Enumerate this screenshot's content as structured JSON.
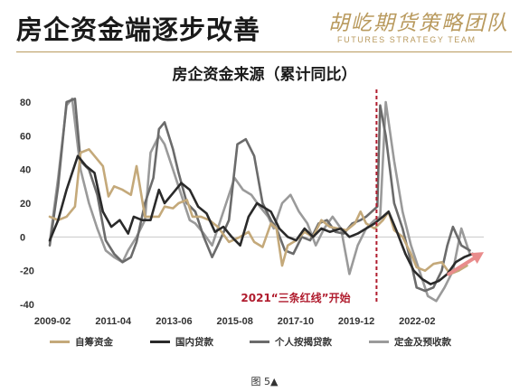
{
  "header": {
    "title": "房企资金端逐步改善",
    "logo_cn": "胡屹期货策略团队",
    "logo_en": "FUTURES STRATEGY TEAM"
  },
  "caption": "图 5▲",
  "chart_data": {
    "type": "line",
    "title": "房企资金来源（累计同比）",
    "xlabel": "",
    "ylabel": "",
    "x_ticks": [
      "2009-02",
      "2011-04",
      "2013-06",
      "2015-08",
      "2017-10",
      "2019-12",
      "2022-02"
    ],
    "y_ticks": [
      "80",
      "60",
      "40",
      "20",
      "0",
      "-20",
      "-40"
    ],
    "ylim": [
      -40,
      80
    ],
    "xlim": [
      2009.0,
      2024.5
    ],
    "grid": false,
    "legend_position": "bottom",
    "annotation": {
      "text": "2021“三条红线”开始",
      "x": 2020.67,
      "color": "#b01c2e"
    },
    "arrow": {
      "from": [
        2023.25,
        -22
      ],
      "to": [
        2024.5,
        -9
      ],
      "color": "#e98c8c"
    },
    "colors": {
      "自筹资金": "#c4a97a",
      "国内贷款": "#2a2a2a",
      "个人按揭贷款": "#6b6b6b",
      "定金及预收款": "#9a9a9a"
    },
    "series": [
      {
        "name": "自筹资金",
        "x": [
          2009.0,
          2009.3,
          2009.6,
          2009.9,
          2010.1,
          2010.4,
          2010.6,
          2010.9,
          2011.1,
          2011.3,
          2011.6,
          2011.9,
          2012.1,
          2012.4,
          2012.6,
          2012.9,
          2013.1,
          2013.4,
          2013.6,
          2013.9,
          2014.1,
          2014.4,
          2014.7,
          2015.0,
          2015.4,
          2015.8,
          2016.1,
          2016.3,
          2016.6,
          2016.9,
          2017.1,
          2017.3,
          2017.5,
          2017.8,
          2018.1,
          2018.4,
          2018.7,
          2019.0,
          2019.3,
          2019.6,
          2019.9,
          2020.1,
          2020.3,
          2020.6,
          2020.9,
          2021.1,
          2021.3,
          2021.6,
          2021.9,
          2022.1,
          2022.4,
          2022.7,
          2023.0,
          2023.3,
          2023.6,
          2023.9
        ],
        "values": [
          12,
          10,
          12,
          18,
          50,
          52,
          48,
          42,
          24,
          30,
          28,
          25,
          42,
          12,
          12,
          12,
          18,
          17,
          20,
          22,
          12,
          12,
          10,
          6,
          -3,
          0,
          3,
          -3,
          -6,
          8,
          5,
          -17,
          -5,
          -2,
          3,
          0,
          10,
          6,
          5,
          4,
          8,
          15,
          8,
          5,
          10,
          15,
          4,
          0,
          -10,
          -18,
          -20,
          -16,
          -15,
          -22,
          -20,
          -17
        ]
      },
      {
        "name": "国内贷款",
        "x": [
          2009.0,
          2009.3,
          2009.6,
          2010.0,
          2010.3,
          2010.6,
          2010.9,
          2011.2,
          2011.5,
          2011.8,
          2012.0,
          2012.3,
          2012.6,
          2012.9,
          2013.1,
          2013.4,
          2013.7,
          2014.0,
          2014.3,
          2014.6,
          2014.9,
          2015.2,
          2015.5,
          2015.8,
          2016.1,
          2016.4,
          2016.7,
          2016.9,
          2017.2,
          2017.5,
          2017.8,
          2018.1,
          2018.4,
          2018.7,
          2019.0,
          2019.4,
          2019.7,
          2020.0,
          2020.3,
          2020.6,
          2020.9,
          2021.1,
          2021.4,
          2021.7,
          2022.0,
          2022.3,
          2022.6,
          2022.9,
          2023.2,
          2023.5,
          2023.8,
          2024.1
        ],
        "values": [
          -2,
          10,
          28,
          48,
          42,
          38,
          15,
          6,
          10,
          2,
          12,
          10,
          10,
          28,
          20,
          26,
          32,
          28,
          18,
          14,
          3,
          6,
          0,
          -5,
          12,
          20,
          17,
          15,
          5,
          0,
          -2,
          5,
          0,
          5,
          3,
          5,
          0,
          2,
          5,
          8,
          12,
          15,
          3,
          -10,
          -20,
          -25,
          -28,
          -26,
          -22,
          -15,
          -12,
          -10
        ]
      },
      {
        "name": "个人按揭贷款",
        "x": [
          2009.0,
          2009.3,
          2009.6,
          2009.9,
          2010.1,
          2010.4,
          2010.7,
          2011.0,
          2011.3,
          2011.6,
          2011.9,
          2012.1,
          2012.4,
          2012.7,
          2012.9,
          2013.1,
          2013.4,
          2013.6,
          2013.9,
          2014.2,
          2014.5,
          2014.8,
          2015.0,
          2015.4,
          2015.7,
          2016.0,
          2016.3,
          2016.6,
          2016.9,
          2017.1,
          2017.4,
          2017.7,
          2018.0,
          2018.3,
          2018.6,
          2018.9,
          2019.2,
          2019.5,
          2019.8,
          2020.1,
          2020.3,
          2020.5,
          2020.7,
          2020.8,
          2021.0,
          2021.3,
          2021.6,
          2021.9,
          2022.1,
          2022.4,
          2022.7,
          2023.0,
          2023.2,
          2023.4,
          2023.7,
          2024.0
        ],
        "values": [
          -5,
          30,
          80,
          82,
          45,
          40,
          25,
          -2,
          -10,
          -15,
          -12,
          -3,
          20,
          35,
          64,
          68,
          52,
          38,
          20,
          15,
          0,
          -12,
          -5,
          10,
          55,
          58,
          48,
          20,
          10,
          5,
          -8,
          -10,
          0,
          -2,
          8,
          10,
          3,
          2,
          8,
          10,
          12,
          15,
          18,
          78,
          60,
          20,
          5,
          -15,
          -30,
          -32,
          -30,
          -20,
          -5,
          6,
          -5,
          -8
        ]
      },
      {
        "name": "定金及预收款",
        "x": [
          2009.0,
          2009.3,
          2009.6,
          2009.8,
          2010.1,
          2010.4,
          2010.7,
          2011.0,
          2011.3,
          2011.6,
          2011.8,
          2012.1,
          2012.4,
          2012.6,
          2012.9,
          2013.1,
          2013.4,
          2013.7,
          2014.0,
          2014.2,
          2014.5,
          2014.8,
          2015.0,
          2015.3,
          2015.6,
          2015.9,
          2016.2,
          2016.5,
          2016.8,
          2017.0,
          2017.3,
          2017.6,
          2017.9,
          2018.2,
          2018.5,
          2018.8,
          2019.1,
          2019.4,
          2019.7,
          2020.0,
          2020.3,
          2020.6,
          2020.8,
          2021.0,
          2021.3,
          2021.6,
          2021.9,
          2022.2,
          2022.5,
          2022.8,
          2023.1,
          2023.4,
          2023.7,
          2024.0
        ],
        "values": [
          -3,
          35,
          78,
          82,
          40,
          20,
          5,
          -8,
          -12,
          -15,
          -8,
          0,
          10,
          50,
          60,
          55,
          40,
          25,
          10,
          8,
          2,
          -5,
          5,
          20,
          35,
          28,
          25,
          18,
          12,
          5,
          20,
          25,
          15,
          8,
          -5,
          5,
          12,
          5,
          -22,
          -5,
          5,
          10,
          12,
          80,
          45,
          15,
          -5,
          -20,
          -35,
          -38,
          -30,
          -20,
          5,
          -10
        ]
      }
    ]
  }
}
